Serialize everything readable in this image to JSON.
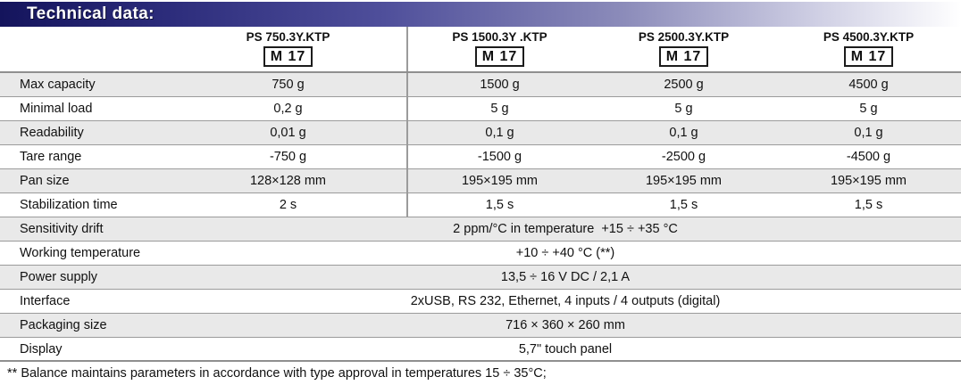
{
  "banner": {
    "title": "Technical data:",
    "gradient_start_color": "#14145c",
    "gradient_end_color": "#ffffff",
    "text_color": "#ffffff"
  },
  "table": {
    "columns": [
      {
        "model": "PS 750.3Y.KTP",
        "badge": "M 17"
      },
      {
        "model": "PS 1500.3Y .KTP",
        "badge": "M 17"
      },
      {
        "model": "PS 2500.3Y.KTP",
        "badge": "M 17"
      },
      {
        "model": "PS 4500.3Y.KTP",
        "badge": "M 17"
      }
    ],
    "rows": [
      {
        "label": "Max capacity",
        "values": [
          "750 g",
          "1500 g",
          "2500 g",
          "4500 g"
        ]
      },
      {
        "label": "Minimal load",
        "values": [
          "0,2 g",
          "5 g",
          "5 g",
          "5 g"
        ]
      },
      {
        "label": "Readability",
        "values": [
          "0,01 g",
          "0,1 g",
          "0,1 g",
          "0,1 g"
        ]
      },
      {
        "label": "Tare range",
        "values": [
          "-750 g",
          "-1500 g",
          "-2500 g",
          "-4500 g"
        ]
      },
      {
        "label": "Pan size",
        "values": [
          "128×128 mm",
          "195×195 mm",
          "195×195 mm",
          "195×195 mm"
        ]
      },
      {
        "label": "Stabilization time",
        "values": [
          "2 s",
          "1,5 s",
          "1,5 s",
          "1,5 s"
        ]
      },
      {
        "label": "Sensitivity drift",
        "value": "2 ppm/°C in temperature  +15 ÷ +35 °C"
      },
      {
        "label": "Working temperature",
        "value": "+10 ÷ +40 °C (**)"
      },
      {
        "label": "Power supply",
        "value": "13,5 ÷ 16 V DC / 2,1 A"
      },
      {
        "label": "Interface",
        "value": "2xUSB, RS 232, Ethernet, 4 inputs / 4 outputs (digital)"
      },
      {
        "label": "Packaging size",
        "value": "716 × 360 × 260 mm"
      },
      {
        "label": "Display",
        "value": "5,7\" touch panel"
      }
    ],
    "stripe_color": "#e9e9e9",
    "rule_color": "#9b9b9b"
  },
  "footnote": "** Balance maintains parameters in accordance with type approval in temperatures 15 ÷ 35°C;"
}
